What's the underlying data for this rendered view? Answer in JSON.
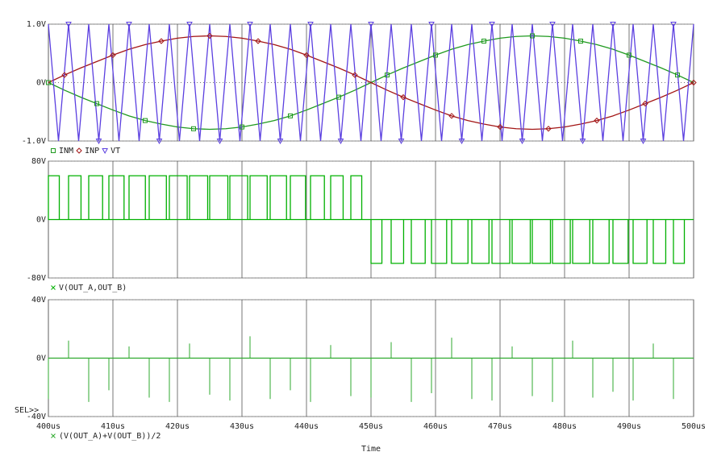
{
  "chart_data": [
    {
      "type": "line",
      "xlim": [
        400,
        500
      ],
      "ylim": [
        -1,
        1
      ],
      "yticks": [
        {
          "value": -1,
          "label": "-1.0V"
        },
        {
          "value": 0,
          "label": "0V"
        },
        {
          "value": 1,
          "label": "1.0V"
        }
      ],
      "grid": true,
      "series": [
        {
          "name": "INM",
          "color": "#1f9a1f",
          "marker": "square",
          "x": [
            400,
            402.5,
            405,
            407.5,
            410,
            412.5,
            415,
            417.5,
            420,
            422.5,
            425,
            427.5,
            430,
            432.5,
            435,
            437.5,
            440,
            442.5,
            445,
            447.5,
            450,
            452.5,
            455,
            457.5,
            460,
            462.5,
            465,
            467.5,
            470,
            472.5,
            475,
            477.5,
            480,
            482.5,
            485,
            487.5,
            490,
            492.5,
            495,
            497.5,
            500
          ],
          "values": [
            0,
            -0.13,
            -0.25,
            -0.36,
            -0.47,
            -0.57,
            -0.65,
            -0.71,
            -0.76,
            -0.79,
            -0.8,
            -0.79,
            -0.76,
            -0.71,
            -0.65,
            -0.57,
            -0.47,
            -0.36,
            -0.25,
            -0.13,
            0,
            0.13,
            0.25,
            0.36,
            0.47,
            0.57,
            0.65,
            0.71,
            0.76,
            0.79,
            0.8,
            0.79,
            0.76,
            0.71,
            0.65,
            0.57,
            0.47,
            0.36,
            0.25,
            0.13,
            0
          ]
        },
        {
          "name": "INP",
          "color": "#a31515",
          "marker": "diamond",
          "x": [
            400,
            402.5,
            405,
            407.5,
            410,
            412.5,
            415,
            417.5,
            420,
            422.5,
            425,
            427.5,
            430,
            432.5,
            435,
            437.5,
            440,
            442.5,
            445,
            447.5,
            450,
            452.5,
            455,
            457.5,
            460,
            462.5,
            465,
            467.5,
            470,
            472.5,
            475,
            477.5,
            480,
            482.5,
            485,
            487.5,
            490,
            492.5,
            495,
            497.5,
            500
          ],
          "values": [
            0,
            0.13,
            0.25,
            0.36,
            0.47,
            0.57,
            0.65,
            0.71,
            0.76,
            0.79,
            0.8,
            0.79,
            0.76,
            0.71,
            0.65,
            0.57,
            0.47,
            0.36,
            0.25,
            0.13,
            0,
            -0.13,
            -0.25,
            -0.36,
            -0.47,
            -0.57,
            -0.65,
            -0.71,
            -0.76,
            -0.79,
            -0.8,
            -0.79,
            -0.76,
            -0.71,
            -0.65,
            -0.57,
            -0.47,
            -0.36,
            -0.25,
            -0.13,
            0
          ]
        },
        {
          "name": "VT",
          "color": "#5b3fe0",
          "marker": "triangle",
          "x": [
            400,
            401.5625,
            403.125,
            404.6875,
            406.25,
            407.8125,
            409.375,
            410.9375,
            412.5,
            414.0625,
            415.625,
            417.1875,
            418.75,
            420.3125,
            421.875,
            423.4375,
            425,
            426.5625,
            428.125,
            429.6875,
            431.25,
            432.8125,
            434.375,
            435.9375,
            437.5,
            439.0625,
            440.625,
            442.1875,
            443.75,
            445.3125,
            446.875,
            448.4375,
            450,
            451.5625,
            453.125,
            454.6875,
            456.25,
            457.8125,
            459.375,
            460.9375,
            462.5,
            464.0625,
            465.625,
            467.1875,
            468.75,
            470.3125,
            471.875,
            473.4375,
            475,
            476.5625,
            478.125,
            479.6875,
            481.25,
            482.8125,
            484.375,
            485.9375,
            487.5,
            489.0625,
            490.625,
            492.1875,
            493.75,
            495.3125,
            496.875,
            498.4375,
            500
          ],
          "values": [
            1,
            -1,
            1,
            -1,
            1,
            -1,
            1,
            -1,
            1,
            -1,
            1,
            -1,
            1,
            -1,
            1,
            -1,
            1,
            -1,
            1,
            -1,
            1,
            -1,
            1,
            -1,
            1,
            -1,
            1,
            -1,
            1,
            -1,
            1,
            -1,
            1,
            -1,
            1,
            -1,
            1,
            -1,
            1,
            -1,
            1,
            -1,
            1,
            -1,
            1,
            -1,
            1,
            -1,
            1,
            -1,
            1,
            -1,
            1,
            -1,
            1,
            -1,
            1,
            -1,
            1,
            -1,
            1,
            -1,
            1,
            -1,
            1
          ]
        }
      ]
    },
    {
      "type": "pulse",
      "xlim": [
        400,
        500
      ],
      "ylim": [
        -80,
        80
      ],
      "yticks": [
        {
          "value": -80,
          "label": "-80V"
        },
        {
          "value": 0,
          "label": "0V"
        },
        {
          "value": 80,
          "label": "80V"
        }
      ],
      "grid": true,
      "series": [
        {
          "name": "V(OUT_A,OUT_B)",
          "color": "#00b000",
          "x": [
            400,
            403.125,
            406.25,
            409.375,
            412.5,
            415.625,
            418.75,
            421.875,
            425,
            428.125,
            431.25,
            434.375,
            437.5,
            440.625,
            443.75,
            446.875,
            450,
            453.125,
            456.25,
            459.375,
            462.5,
            465.625,
            468.75,
            471.875,
            475,
            478.125,
            481.25,
            484.375,
            487.5,
            490.625,
            493.75,
            496.875
          ],
          "widths": [
            1.69,
            1.93,
            2.15,
            2.35,
            2.53,
            2.66,
            2.76,
            2.81,
            2.81,
            2.76,
            2.66,
            2.53,
            2.35,
            2.15,
            1.93,
            1.69,
            1.69,
            1.93,
            2.15,
            2.35,
            2.53,
            2.66,
            2.76,
            2.81,
            2.81,
            2.76,
            2.66,
            2.53,
            2.35,
            2.15,
            1.93,
            1.69
          ],
          "values": [
            60,
            60,
            60,
            60,
            60,
            60,
            60,
            60,
            60,
            60,
            60,
            60,
            60,
            60,
            60,
            60,
            -60,
            -60,
            -60,
            -60,
            -60,
            -60,
            -60,
            -60,
            -60,
            -60,
            -60,
            -60,
            -60,
            -60,
            -60,
            -60
          ]
        }
      ]
    },
    {
      "type": "spike",
      "xlim": [
        400,
        500
      ],
      "ylim": [
        -40,
        40
      ],
      "yticks": [
        {
          "value": -40,
          "label": "-40V"
        },
        {
          "value": 0,
          "label": "0V"
        },
        {
          "value": 40,
          "label": "40V"
        }
      ],
      "xticks": [
        {
          "value": 400,
          "label": "400us"
        },
        {
          "value": 410,
          "label": "410us"
        },
        {
          "value": 420,
          "label": "420us"
        },
        {
          "value": 430,
          "label": "430us"
        },
        {
          "value": 440,
          "label": "440us"
        },
        {
          "value": 450,
          "label": "450us"
        },
        {
          "value": 460,
          "label": "460us"
        },
        {
          "value": 470,
          "label": "470us"
        },
        {
          "value": 480,
          "label": "480us"
        },
        {
          "value": 490,
          "label": "490us"
        },
        {
          "value": 500,
          "label": "500us"
        }
      ],
      "xlabel": "Time",
      "selector_label": "SEL>>",
      "grid": true,
      "series": [
        {
          "name": "(V(OUT_A)+V(OUT_B))/2",
          "color": "#2faa2f",
          "x": [
            400,
            403.125,
            406.25,
            409.375,
            412.5,
            415.625,
            418.75,
            421.875,
            425,
            428.125,
            431.25,
            434.375,
            437.5,
            440.625,
            443.75,
            446.875,
            450,
            453.125,
            456.25,
            459.375,
            462.5,
            465.625,
            468.75,
            471.875,
            475,
            478.125,
            481.25,
            484.375,
            487.5,
            490.625,
            493.75,
            496.875
          ],
          "values": [
            -28,
            12,
            -30,
            -22,
            8,
            -27,
            -30,
            10,
            -25,
            -29,
            15,
            -28,
            -22,
            -30,
            9,
            -26,
            -27,
            11,
            -30,
            -24,
            14,
            -28,
            -29,
            8,
            -26,
            -30,
            12,
            -27,
            -23,
            -29,
            10,
            -28
          ]
        }
      ]
    }
  ]
}
